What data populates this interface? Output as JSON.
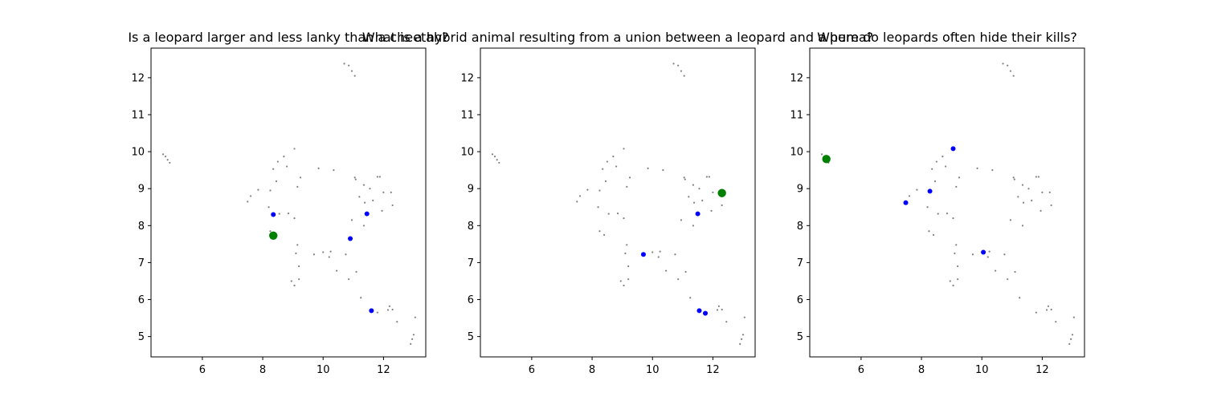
{
  "colors": {
    "background_points": "#808080",
    "blue_points": "#0000ff",
    "highlight_point": "#008000",
    "axes": "#000000"
  },
  "chart_data": [
    {
      "type": "scatter",
      "title": "Is a leopard larger and less lanky than a cheetah?",
      "xlabel": "",
      "ylabel": "",
      "xlim": [
        4.3,
        13.4
      ],
      "ylim": [
        4.45,
        12.8
      ],
      "xticks": [
        6,
        8,
        10,
        12
      ],
      "yticks": [
        5,
        6,
        7,
        8,
        9,
        10,
        11,
        12
      ],
      "grid": false,
      "highlight": [
        {
          "x": 8.35,
          "y": 7.73
        }
      ],
      "blue_points": [
        {
          "x": 8.35,
          "y": 8.3
        },
        {
          "x": 10.9,
          "y": 7.65
        },
        {
          "x": 11.45,
          "y": 8.32
        },
        {
          "x": 11.6,
          "y": 5.7
        }
      ]
    },
    {
      "type": "scatter",
      "title": "What is a hybrid animal resulting from a union between a leopard and a puma?",
      "xlabel": "",
      "ylabel": "",
      "xlim": [
        4.3,
        13.4
      ],
      "ylim": [
        4.45,
        12.8
      ],
      "xticks": [
        6,
        8,
        10,
        12
      ],
      "yticks": [
        5,
        6,
        7,
        8,
        9,
        10,
        11,
        12
      ],
      "grid": false,
      "highlight": [
        {
          "x": 12.3,
          "y": 8.88
        }
      ],
      "blue_points": [
        {
          "x": 9.7,
          "y": 7.22
        },
        {
          "x": 11.5,
          "y": 8.32
        },
        {
          "x": 11.55,
          "y": 5.7
        },
        {
          "x": 11.75,
          "y": 5.63
        }
      ]
    },
    {
      "type": "scatter",
      "title": "Where do leopards often hide their kills?",
      "xlabel": "",
      "ylabel": "",
      "xlim": [
        4.3,
        13.4
      ],
      "ylim": [
        4.45,
        12.8
      ],
      "xticks": [
        6,
        8,
        10,
        12
      ],
      "yticks": [
        5,
        6,
        7,
        8,
        9,
        10,
        11,
        12
      ],
      "grid": false,
      "highlight": [
        {
          "x": 4.85,
          "y": 9.8
        }
      ],
      "blue_points": [
        {
          "x": 7.48,
          "y": 8.62
        },
        {
          "x": 8.28,
          "y": 8.93
        },
        {
          "x": 9.05,
          "y": 10.08
        },
        {
          "x": 10.05,
          "y": 7.28
        }
      ]
    }
  ],
  "background_points": [
    {
      "x": 4.7,
      "y": 9.93
    },
    {
      "x": 4.78,
      "y": 9.87
    },
    {
      "x": 4.85,
      "y": 9.78
    },
    {
      "x": 4.92,
      "y": 9.7
    },
    {
      "x": 10.7,
      "y": 12.38
    },
    {
      "x": 10.85,
      "y": 12.33
    },
    {
      "x": 10.95,
      "y": 12.18
    },
    {
      "x": 11.05,
      "y": 12.05
    },
    {
      "x": 7.5,
      "y": 8.65
    },
    {
      "x": 7.6,
      "y": 8.8
    },
    {
      "x": 7.85,
      "y": 8.97
    },
    {
      "x": 8.2,
      "y": 8.5
    },
    {
      "x": 8.25,
      "y": 8.95
    },
    {
      "x": 8.35,
      "y": 9.53
    },
    {
      "x": 8.45,
      "y": 9.2
    },
    {
      "x": 8.5,
      "y": 9.73
    },
    {
      "x": 8.55,
      "y": 8.32
    },
    {
      "x": 8.7,
      "y": 9.87
    },
    {
      "x": 8.8,
      "y": 9.6
    },
    {
      "x": 8.85,
      "y": 8.33
    },
    {
      "x": 9.05,
      "y": 10.08
    },
    {
      "x": 9.05,
      "y": 8.2
    },
    {
      "x": 9.25,
      "y": 9.3
    },
    {
      "x": 9.15,
      "y": 9.05
    },
    {
      "x": 8.25,
      "y": 7.85
    },
    {
      "x": 8.4,
      "y": 7.75
    },
    {
      "x": 9.15,
      "y": 7.48
    },
    {
      "x": 9.1,
      "y": 7.25
    },
    {
      "x": 9.2,
      "y": 6.9
    },
    {
      "x": 8.95,
      "y": 6.5
    },
    {
      "x": 9.05,
      "y": 6.38
    },
    {
      "x": 9.2,
      "y": 6.55
    },
    {
      "x": 9.7,
      "y": 7.22
    },
    {
      "x": 9.85,
      "y": 9.55
    },
    {
      "x": 10.0,
      "y": 7.28
    },
    {
      "x": 10.2,
      "y": 7.15
    },
    {
      "x": 10.25,
      "y": 7.3
    },
    {
      "x": 10.35,
      "y": 9.5
    },
    {
      "x": 10.45,
      "y": 6.78
    },
    {
      "x": 10.75,
      "y": 7.22
    },
    {
      "x": 10.85,
      "y": 6.55
    },
    {
      "x": 11.05,
      "y": 9.3
    },
    {
      "x": 11.08,
      "y": 9.25
    },
    {
      "x": 11.1,
      "y": 6.75
    },
    {
      "x": 11.2,
      "y": 8.78
    },
    {
      "x": 11.35,
      "y": 9.1
    },
    {
      "x": 11.38,
      "y": 8.62
    },
    {
      "x": 11.25,
      "y": 6.05
    },
    {
      "x": 11.55,
      "y": 9.0
    },
    {
      "x": 11.65,
      "y": 8.68
    },
    {
      "x": 11.8,
      "y": 9.32
    },
    {
      "x": 11.88,
      "y": 9.32
    },
    {
      "x": 11.95,
      "y": 8.4
    },
    {
      "x": 12.0,
      "y": 8.9
    },
    {
      "x": 12.25,
      "y": 8.9
    },
    {
      "x": 12.3,
      "y": 8.55
    },
    {
      "x": 11.8,
      "y": 5.65
    },
    {
      "x": 12.15,
      "y": 5.72
    },
    {
      "x": 12.2,
      "y": 5.82
    },
    {
      "x": 12.3,
      "y": 5.73
    },
    {
      "x": 12.45,
      "y": 5.4
    },
    {
      "x": 12.9,
      "y": 4.8
    },
    {
      "x": 12.95,
      "y": 4.93
    },
    {
      "x": 13.0,
      "y": 5.05
    },
    {
      "x": 13.05,
      "y": 5.52
    },
    {
      "x": 11.35,
      "y": 8.0
    },
    {
      "x": 10.95,
      "y": 8.15
    }
  ]
}
